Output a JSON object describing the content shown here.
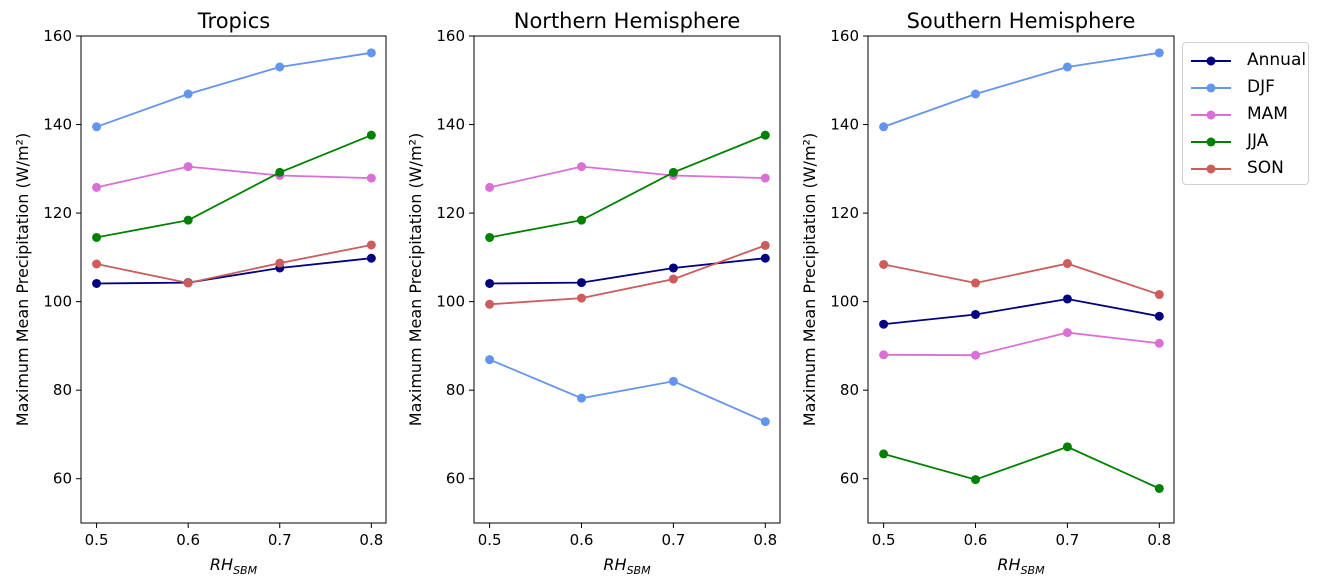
{
  "chart_data": [
    {
      "type": "line",
      "title": "Tropics",
      "ylabel": "Maximum Mean Precipitation (W/m²)",
      "xlabel_base": "RH",
      "xlabel_sub": "SBM",
      "x": [
        0.5,
        0.6,
        0.7,
        0.8
      ],
      "xticklabels": [
        "0.5",
        "0.6",
        "0.7",
        "0.8"
      ],
      "xlim": [
        0.483,
        0.816
      ],
      "ylim": [
        50,
        160
      ],
      "yticks": [
        60,
        80,
        100,
        120,
        140,
        160
      ],
      "series": [
        {
          "name": "Annual",
          "color": "#000080",
          "values": [
            104.1,
            104.3,
            107.6,
            109.8
          ]
        },
        {
          "name": "DJF",
          "color": "#6495ED",
          "values": [
            139.5,
            146.9,
            153.0,
            156.2
          ]
        },
        {
          "name": "MAM",
          "color": "#DA70D6",
          "values": [
            125.8,
            130.5,
            128.5,
            127.9
          ]
        },
        {
          "name": "JJA",
          "color": "#008000",
          "values": [
            114.5,
            118.4,
            129.2,
            137.6
          ]
        },
        {
          "name": "SON",
          "color": "#CD5C5C",
          "values": [
            108.5,
            104.2,
            108.7,
            112.8
          ]
        }
      ]
    },
    {
      "type": "line",
      "title": "Northern Hemisphere",
      "ylabel": "Maximum Mean Precipitation (W/m²)",
      "xlabel_base": "RH",
      "xlabel_sub": "SBM",
      "x": [
        0.5,
        0.6,
        0.7,
        0.8
      ],
      "xticklabels": [
        "0.5",
        "0.6",
        "0.7",
        "0.8"
      ],
      "xlim": [
        0.483,
        0.816
      ],
      "ylim": [
        50,
        160
      ],
      "yticks": [
        60,
        80,
        100,
        120,
        140,
        160
      ],
      "series": [
        {
          "name": "Annual",
          "color": "#000080",
          "values": [
            104.1,
            104.3,
            107.6,
            109.8
          ]
        },
        {
          "name": "DJF",
          "color": "#6495ED",
          "values": [
            86.9,
            78.2,
            82.0,
            72.9
          ]
        },
        {
          "name": "MAM",
          "color": "#DA70D6",
          "values": [
            125.8,
            130.5,
            128.5,
            127.9
          ]
        },
        {
          "name": "JJA",
          "color": "#008000",
          "values": [
            114.5,
            118.4,
            129.2,
            137.6
          ]
        },
        {
          "name": "SON",
          "color": "#CD5C5C",
          "values": [
            99.4,
            100.8,
            105.1,
            112.7
          ]
        }
      ]
    },
    {
      "type": "line",
      "title": "Southern Hemisphere",
      "ylabel": "Maximum Mean Precipitation (W/m²)",
      "xlabel_base": "RH",
      "xlabel_sub": "SBM",
      "x": [
        0.5,
        0.6,
        0.7,
        0.8
      ],
      "xticklabels": [
        "0.5",
        "0.6",
        "0.7",
        "0.8"
      ],
      "xlim": [
        0.483,
        0.816
      ],
      "ylim": [
        50,
        160
      ],
      "yticks": [
        60,
        80,
        100,
        120,
        140,
        160
      ],
      "legend_position": "outside-upper-right",
      "series": [
        {
          "name": "Annual",
          "color": "#000080",
          "values": [
            94.9,
            97.1,
            100.6,
            96.7
          ]
        },
        {
          "name": "DJF",
          "color": "#6495ED",
          "values": [
            139.5,
            146.9,
            153.0,
            156.2
          ]
        },
        {
          "name": "MAM",
          "color": "#DA70D6",
          "values": [
            88.0,
            87.9,
            93.0,
            90.6
          ]
        },
        {
          "name": "JJA",
          "color": "#008000",
          "values": [
            65.6,
            59.8,
            67.2,
            57.8
          ]
        },
        {
          "name": "SON",
          "color": "#CD5C5C",
          "values": [
            108.4,
            104.2,
            108.6,
            101.6
          ]
        }
      ]
    }
  ],
  "legend": {
    "items": [
      {
        "label": "Annual",
        "color": "#000080"
      },
      {
        "label": "DJF",
        "color": "#6495ED"
      },
      {
        "label": "MAM",
        "color": "#DA70D6"
      },
      {
        "label": "JJA",
        "color": "#008000"
      },
      {
        "label": "SON",
        "color": "#CD5C5C"
      }
    ]
  }
}
